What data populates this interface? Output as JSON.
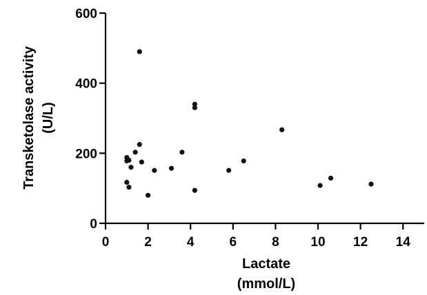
{
  "chart_data": {
    "type": "scatter",
    "title": "",
    "xlabel": [
      "Lactate",
      "(mmol/L)"
    ],
    "ylabel": [
      "Transketolase activity",
      "(U/L)"
    ],
    "xlim": [
      0,
      15
    ],
    "ylim": [
      0,
      600
    ],
    "xticks": [
      0,
      2,
      4,
      6,
      8,
      10,
      12,
      14
    ],
    "yticks": [
      0,
      200,
      400,
      600
    ],
    "grid": false,
    "marker_color": "#111111",
    "series": [
      {
        "points": [
          {
            "x": 1.0,
            "y": 188
          },
          {
            "x": 1.0,
            "y": 178
          },
          {
            "x": 1.05,
            "y": 182
          },
          {
            "x": 1.1,
            "y": 180
          },
          {
            "x": 1.0,
            "y": 117
          },
          {
            "x": 1.1,
            "y": 103
          },
          {
            "x": 1.2,
            "y": 160
          },
          {
            "x": 1.4,
            "y": 203
          },
          {
            "x": 1.6,
            "y": 225
          },
          {
            "x": 1.6,
            "y": 490
          },
          {
            "x": 1.7,
            "y": 175
          },
          {
            "x": 2.0,
            "y": 80
          },
          {
            "x": 2.3,
            "y": 151
          },
          {
            "x": 3.1,
            "y": 157
          },
          {
            "x": 3.6,
            "y": 203
          },
          {
            "x": 4.2,
            "y": 340
          },
          {
            "x": 4.2,
            "y": 330
          },
          {
            "x": 4.2,
            "y": 94
          },
          {
            "x": 5.8,
            "y": 151
          },
          {
            "x": 6.5,
            "y": 178
          },
          {
            "x": 8.3,
            "y": 267
          },
          {
            "x": 10.1,
            "y": 108
          },
          {
            "x": 10.6,
            "y": 129
          },
          {
            "x": 12.5,
            "y": 112
          }
        ]
      }
    ]
  }
}
